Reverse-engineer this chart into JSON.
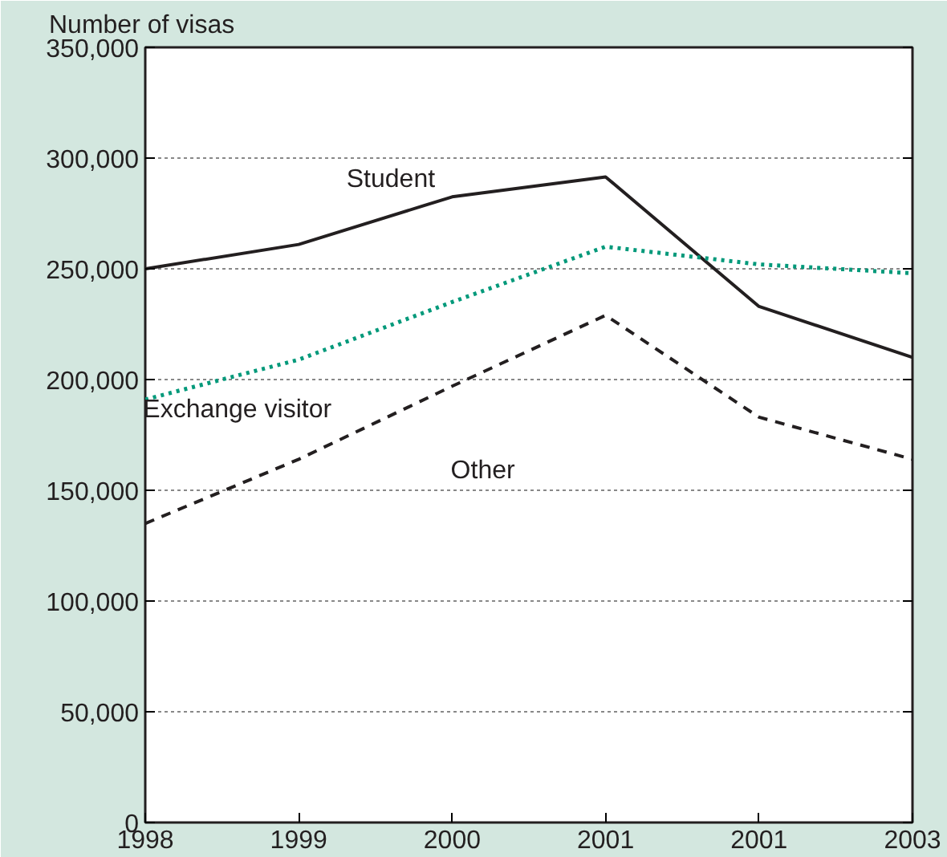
{
  "chart_data": {
    "type": "line",
    "ylabel": "Number of visas",
    "categories": [
      "1998",
      "1999",
      "2000",
      "2001",
      "2001",
      "2003"
    ],
    "series": [
      {
        "name": "Student",
        "color": "#231f20",
        "line_style": "solid",
        "values": [
          250000,
          261000,
          282500,
          291500,
          233000,
          210000
        ]
      },
      {
        "name": "Exchange visitor",
        "color": "#00997a",
        "line_style": "dotted",
        "values": [
          191000,
          209000,
          235000,
          260000,
          252000,
          248000
        ]
      },
      {
        "name": "Other",
        "color": "#231f20",
        "line_style": "dashed",
        "values": [
          135000,
          164000,
          197000,
          229000,
          183000,
          164000
        ]
      }
    ],
    "ylim": [
      0,
      350000
    ],
    "yticks": [
      {
        "value": 0,
        "label": "0"
      },
      {
        "value": 50000,
        "label": "50,000"
      },
      {
        "value": 100000,
        "label": "100,000"
      },
      {
        "value": 150000,
        "label": "150,000"
      },
      {
        "value": 200000,
        "label": "200,000"
      },
      {
        "value": 250000,
        "label": "250,000"
      },
      {
        "value": 300000,
        "label": "300,000"
      },
      {
        "value": 350000,
        "label": "350,000"
      }
    ],
    "grid": "y",
    "marker": "none"
  }
}
